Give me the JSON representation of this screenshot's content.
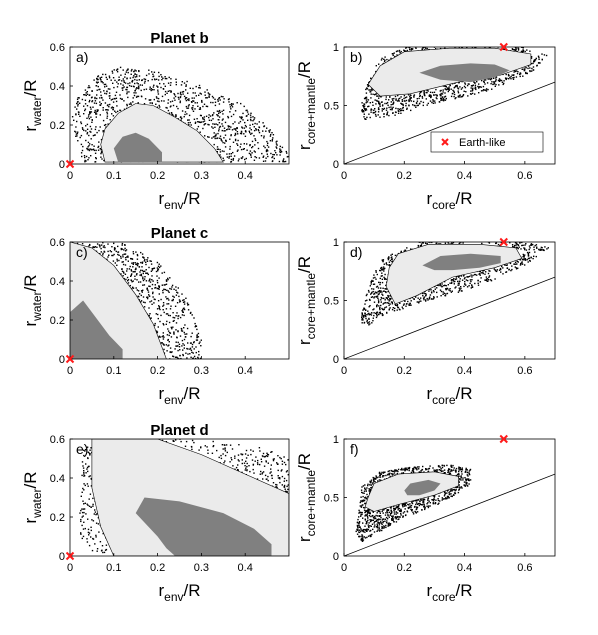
{
  "chart_data": [
    {
      "id": "a",
      "panel_label": "a)",
      "title": "Planet b",
      "type": "scatter",
      "x_axis": {
        "main": "r",
        "sub": "env",
        "suffix": "/R"
      },
      "y_axis": {
        "main": "r",
        "sub": "water",
        "suffix": "/R"
      },
      "xlim": [
        0,
        0.5
      ],
      "ylim": [
        0,
        0.6
      ],
      "xticks": [
        0,
        0.1,
        0.2,
        0.3,
        0.4
      ],
      "yticks": [
        0,
        0.2,
        0.4,
        0.6
      ],
      "earth_like": [
        0,
        0
      ],
      "scatter_region": [
        [
          0.02,
          0.01
        ],
        [
          0.005,
          0.25
        ],
        [
          0.02,
          0.35
        ],
        [
          0.06,
          0.45
        ],
        [
          0.12,
          0.5
        ],
        [
          0.2,
          0.48
        ],
        [
          0.3,
          0.4
        ],
        [
          0.4,
          0.3
        ],
        [
          0.45,
          0.2
        ],
        [
          0.48,
          0.1
        ],
        [
          0.5,
          0.05
        ],
        [
          0.5,
          0.01
        ]
      ],
      "outer_contour": [
        [
          0.08,
          0.01
        ],
        [
          0.07,
          0.1
        ],
        [
          0.08,
          0.18
        ],
        [
          0.11,
          0.26
        ],
        [
          0.15,
          0.31
        ],
        [
          0.19,
          0.3
        ],
        [
          0.24,
          0.24
        ],
        [
          0.29,
          0.17
        ],
        [
          0.33,
          0.08
        ],
        [
          0.35,
          0.01
        ]
      ],
      "inner_contour": [
        [
          0.11,
          0.01
        ],
        [
          0.1,
          0.08
        ],
        [
          0.12,
          0.14
        ],
        [
          0.15,
          0.16
        ],
        [
          0.18,
          0.13
        ],
        [
          0.21,
          0.06
        ],
        [
          0.21,
          0.01
        ]
      ]
    },
    {
      "id": "b",
      "panel_label": "b)",
      "title": "",
      "type": "scatter",
      "x_axis": {
        "main": "r",
        "sub": "core",
        "suffix": "/R"
      },
      "y_axis": {
        "main": "r",
        "sub": "core+mantle",
        "suffix": "/R"
      },
      "xlim": [
        0,
        0.7
      ],
      "ylim": [
        0,
        1
      ],
      "xticks": [
        0,
        0.2,
        0.4,
        0.6
      ],
      "yticks": [
        0,
        0.5,
        1
      ],
      "earth_like": [
        0.53,
        1.0
      ],
      "diagonal": [
        [
          0,
          0
        ],
        [
          0.7,
          0.7
        ]
      ],
      "scatter_region": [
        [
          0.05,
          0.45
        ],
        [
          0.08,
          0.72
        ],
        [
          0.12,
          0.9
        ],
        [
          0.2,
          1.0
        ],
        [
          0.4,
          1.0
        ],
        [
          0.6,
          1.0
        ],
        [
          0.68,
          0.92
        ],
        [
          0.62,
          0.78
        ],
        [
          0.48,
          0.62
        ],
        [
          0.3,
          0.52
        ],
        [
          0.15,
          0.4
        ],
        [
          0.07,
          0.38
        ]
      ],
      "outer_contour": [
        [
          0.08,
          0.68
        ],
        [
          0.12,
          0.84
        ],
        [
          0.2,
          0.96
        ],
        [
          0.35,
          0.99
        ],
        [
          0.5,
          0.99
        ],
        [
          0.62,
          0.94
        ],
        [
          0.62,
          0.85
        ],
        [
          0.52,
          0.76
        ],
        [
          0.38,
          0.7
        ],
        [
          0.22,
          0.6
        ],
        [
          0.12,
          0.58
        ]
      ],
      "inner_contour": [
        [
          0.25,
          0.78
        ],
        [
          0.32,
          0.84
        ],
        [
          0.42,
          0.86
        ],
        [
          0.5,
          0.85
        ],
        [
          0.55,
          0.8
        ],
        [
          0.5,
          0.74
        ],
        [
          0.42,
          0.7
        ],
        [
          0.32,
          0.72
        ]
      ],
      "legend": {
        "label": "Earth-like",
        "placement": "bottom-right"
      }
    },
    {
      "id": "c",
      "panel_label": "c)",
      "title": "Planet c",
      "type": "scatter",
      "x_axis": {
        "main": "r",
        "sub": "env",
        "suffix": "/R"
      },
      "y_axis": {
        "main": "r",
        "sub": "water",
        "suffix": "/R"
      },
      "xlim": [
        0,
        0.5
      ],
      "ylim": [
        0,
        0.6
      ],
      "xticks": [
        0,
        0.1,
        0.2,
        0.3,
        0.4
      ],
      "yticks": [
        0,
        0.2,
        0.4,
        0.6
      ],
      "earth_like": [
        0,
        0
      ],
      "scatter_region": [
        [
          0,
          0
        ],
        [
          0,
          0.6
        ],
        [
          0.12,
          0.6
        ],
        [
          0.2,
          0.5
        ],
        [
          0.27,
          0.3
        ],
        [
          0.3,
          0.1
        ],
        [
          0.3,
          0
        ]
      ],
      "outer_contour": [
        [
          0,
          0
        ],
        [
          0,
          0.6
        ],
        [
          0.05,
          0.57
        ],
        [
          0.1,
          0.48
        ],
        [
          0.15,
          0.33
        ],
        [
          0.19,
          0.18
        ],
        [
          0.22,
          0
        ]
      ],
      "inner_contour": [
        [
          0,
          0
        ],
        [
          0,
          0.24
        ],
        [
          0.03,
          0.3
        ],
        [
          0.05,
          0.24
        ],
        [
          0.09,
          0.12
        ],
        [
          0.12,
          0.05
        ],
        [
          0.12,
          0
        ]
      ]
    },
    {
      "id": "d",
      "panel_label": "d)",
      "title": "",
      "type": "scatter",
      "x_axis": {
        "main": "r",
        "sub": "core",
        "suffix": "/R"
      },
      "y_axis": {
        "main": "r",
        "sub": "core+mantle",
        "suffix": "/R"
      },
      "xlim": [
        0,
        0.7
      ],
      "ylim": [
        0,
        1
      ],
      "xticks": [
        0,
        0.2,
        0.4,
        0.6
      ],
      "yticks": [
        0,
        0.5,
        1
      ],
      "earth_like": [
        0.53,
        1.0
      ],
      "diagonal": [
        [
          0,
          0
        ],
        [
          0.7,
          0.7
        ]
      ],
      "scatter_region": [
        [
          0.05,
          0.3
        ],
        [
          0.08,
          0.6
        ],
        [
          0.12,
          0.85
        ],
        [
          0.25,
          1.0
        ],
        [
          0.45,
          1.0
        ],
        [
          0.6,
          1.0
        ],
        [
          0.68,
          0.95
        ],
        [
          0.62,
          0.82
        ],
        [
          0.45,
          0.62
        ],
        [
          0.25,
          0.48
        ],
        [
          0.14,
          0.38
        ],
        [
          0.08,
          0.28
        ]
      ],
      "outer_contour": [
        [
          0.14,
          0.62
        ],
        [
          0.15,
          0.78
        ],
        [
          0.18,
          0.9
        ],
        [
          0.28,
          0.98
        ],
        [
          0.45,
          0.98
        ],
        [
          0.57,
          0.95
        ],
        [
          0.59,
          0.86
        ],
        [
          0.5,
          0.78
        ],
        [
          0.36,
          0.7
        ],
        [
          0.24,
          0.54
        ],
        [
          0.17,
          0.47
        ]
      ],
      "inner_contour": [
        [
          0.26,
          0.8
        ],
        [
          0.32,
          0.88
        ],
        [
          0.42,
          0.9
        ],
        [
          0.52,
          0.88
        ],
        [
          0.52,
          0.82
        ],
        [
          0.45,
          0.78
        ],
        [
          0.36,
          0.76
        ],
        [
          0.3,
          0.76
        ]
      ]
    },
    {
      "id": "e",
      "panel_label": "e)",
      "title": "Planet d",
      "type": "scatter",
      "x_axis": {
        "main": "r",
        "sub": "env",
        "suffix": "/R"
      },
      "y_axis": {
        "main": "r",
        "sub": "water",
        "suffix": "/R"
      },
      "xlim": [
        0,
        0.5
      ],
      "ylim": [
        0,
        0.6
      ],
      "xticks": [
        0,
        0.1,
        0.2,
        0.3,
        0.4
      ],
      "yticks": [
        0,
        0.2,
        0.4,
        0.6
      ],
      "earth_like": [
        0,
        0
      ],
      "scatter_region": [
        [
          0.02,
          0.1
        ],
        [
          0.03,
          0.55
        ],
        [
          0.08,
          0.6
        ],
        [
          0.3,
          0.6
        ],
        [
          0.45,
          0.55
        ],
        [
          0.5,
          0.5
        ],
        [
          0.5,
          0.2
        ],
        [
          0.45,
          0.05
        ],
        [
          0.3,
          0.02
        ],
        [
          0.15,
          0.01
        ],
        [
          0.05,
          0.02
        ]
      ],
      "outer_contour": [
        [
          0.1,
          0
        ],
        [
          0.07,
          0.15
        ],
        [
          0.05,
          0.35
        ],
        [
          0.05,
          0.6
        ],
        [
          0.2,
          0.6
        ],
        [
          0.3,
          0.52
        ],
        [
          0.4,
          0.42
        ],
        [
          0.5,
          0.32
        ],
        [
          0.5,
          0
        ],
        [
          0.16,
          0
        ]
      ],
      "inner_contour": [
        [
          0.22,
          0.04
        ],
        [
          0.2,
          0.1
        ],
        [
          0.15,
          0.22
        ],
        [
          0.17,
          0.3
        ],
        [
          0.25,
          0.28
        ],
        [
          0.35,
          0.22
        ],
        [
          0.42,
          0.14
        ],
        [
          0.46,
          0.06
        ],
        [
          0.46,
          0
        ],
        [
          0.24,
          0
        ]
      ]
    },
    {
      "id": "f",
      "panel_label": "f)",
      "title": "",
      "type": "scatter",
      "x_axis": {
        "main": "r",
        "sub": "core",
        "suffix": "/R"
      },
      "y_axis": {
        "main": "r",
        "sub": "core+mantle",
        "suffix": "/R"
      },
      "xlim": [
        0,
        0.7
      ],
      "ylim": [
        0,
        1
      ],
      "xticks": [
        0,
        0.2,
        0.4,
        0.6
      ],
      "yticks": [
        0,
        0.5,
        1
      ],
      "earth_like": [
        0.53,
        1.0
      ],
      "diagonal": [
        [
          0,
          0
        ],
        [
          0.7,
          0.7
        ]
      ],
      "scatter_region": [
        [
          0.04,
          0.2
        ],
        [
          0.06,
          0.6
        ],
        [
          0.12,
          0.72
        ],
        [
          0.22,
          0.76
        ],
        [
          0.36,
          0.78
        ],
        [
          0.42,
          0.74
        ],
        [
          0.42,
          0.6
        ],
        [
          0.32,
          0.45
        ],
        [
          0.18,
          0.3
        ],
        [
          0.06,
          0.12
        ]
      ],
      "outer_contour": [
        [
          0.08,
          0.5
        ],
        [
          0.1,
          0.62
        ],
        [
          0.18,
          0.7
        ],
        [
          0.3,
          0.72
        ],
        [
          0.38,
          0.68
        ],
        [
          0.38,
          0.6
        ],
        [
          0.3,
          0.52
        ],
        [
          0.18,
          0.44
        ],
        [
          0.1,
          0.38
        ],
        [
          0.07,
          0.42
        ]
      ],
      "inner_contour": [
        [
          0.2,
          0.56
        ],
        [
          0.22,
          0.62
        ],
        [
          0.28,
          0.65
        ],
        [
          0.32,
          0.62
        ],
        [
          0.3,
          0.56
        ],
        [
          0.25,
          0.52
        ],
        [
          0.21,
          0.52
        ]
      ]
    }
  ],
  "colors": {
    "outer": "#ebebeb",
    "inner": "#808080",
    "points": "#000000",
    "earth_marker": "#ff1a1a"
  }
}
